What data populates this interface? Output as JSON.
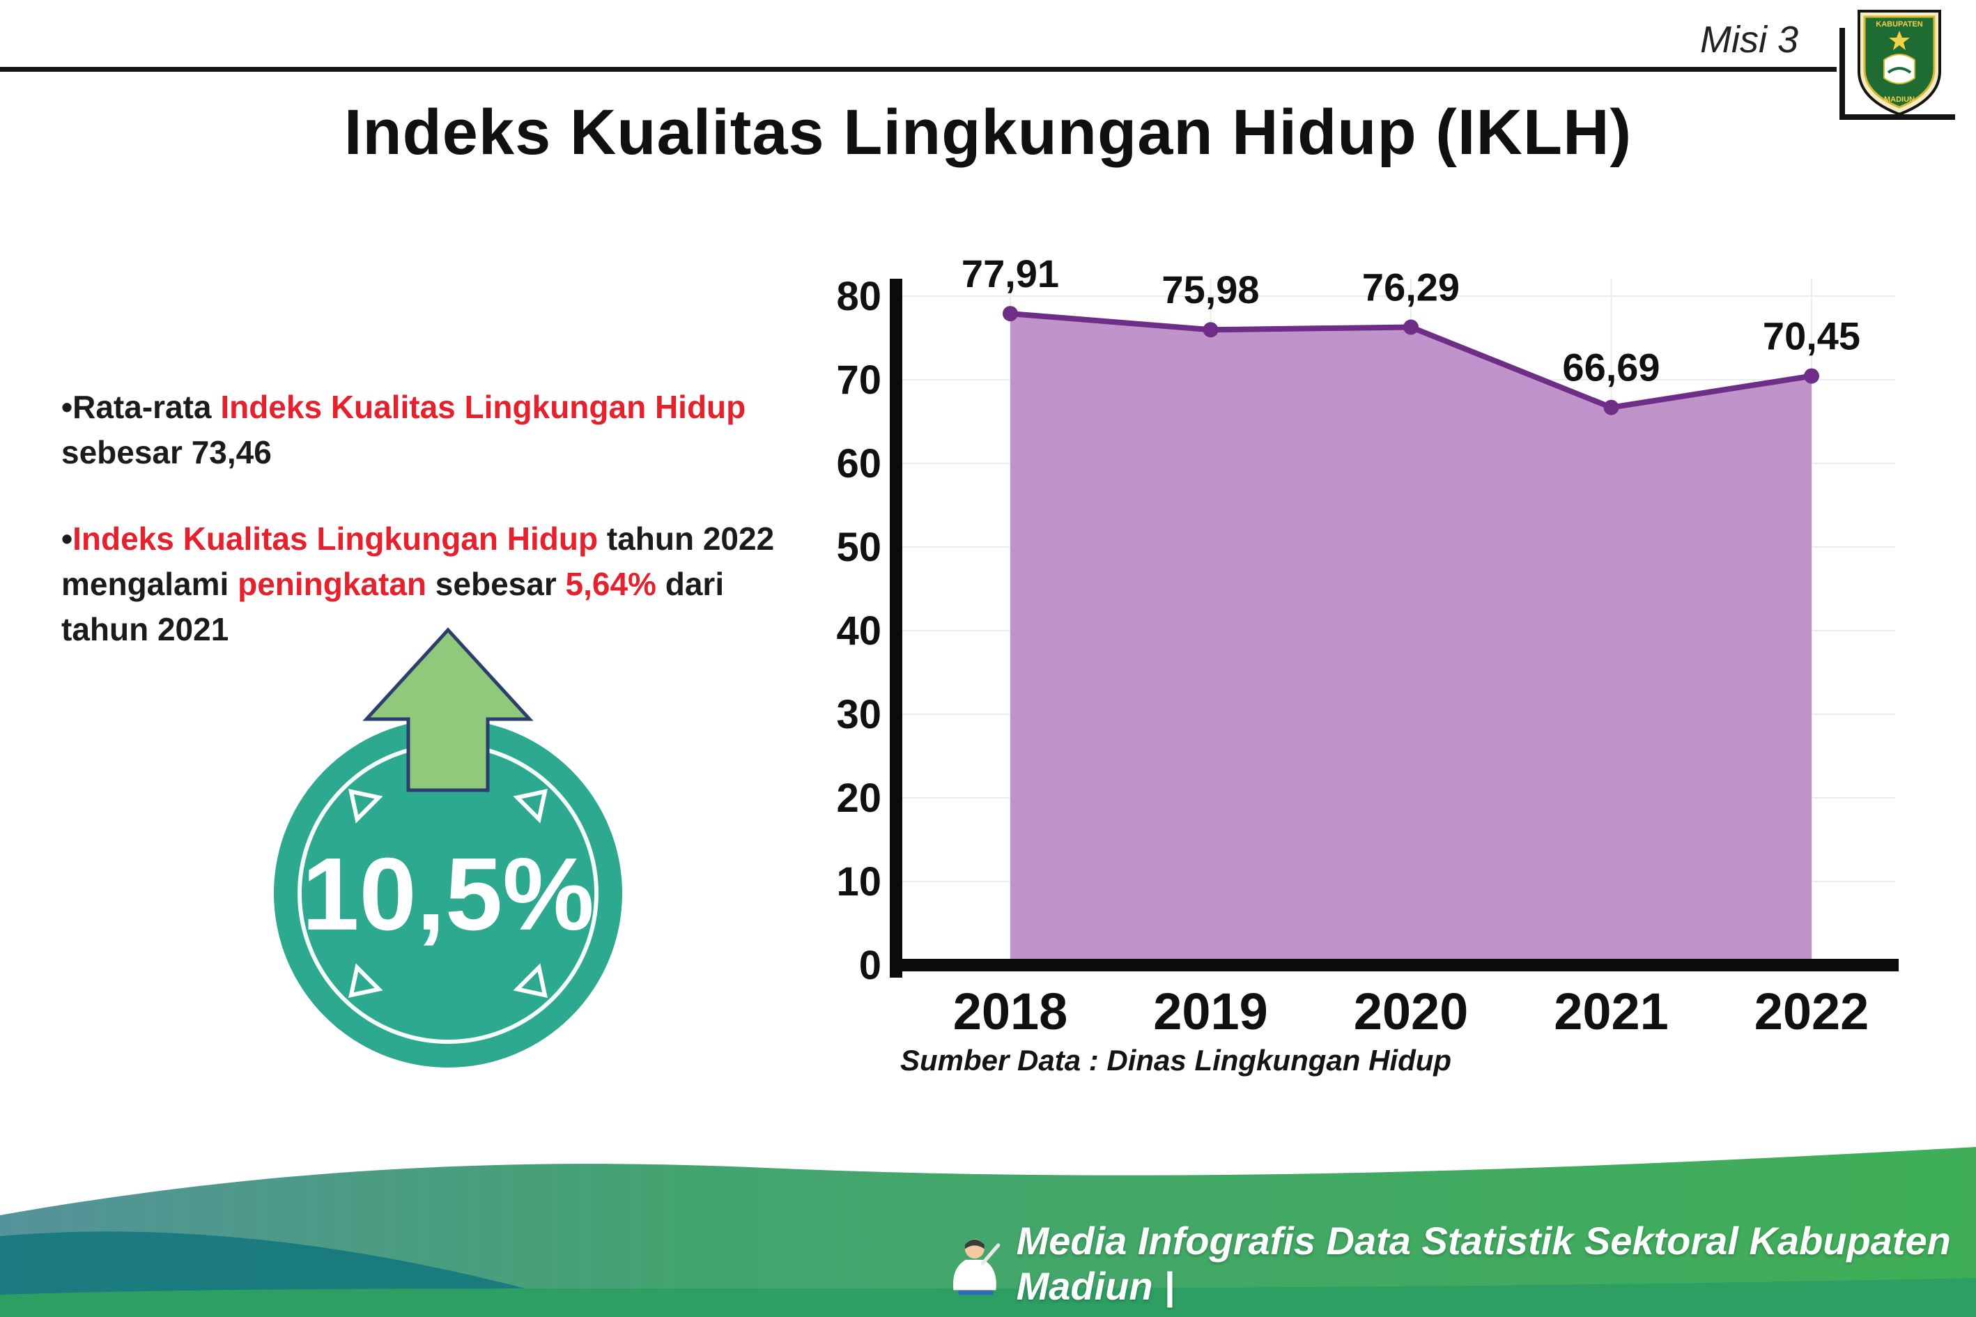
{
  "header": {
    "misi": "Misi 3",
    "title": "Indeks Kualitas Lingkungan Hidup (IKLH)"
  },
  "logo": {
    "top_text": "KABUPATEN",
    "bottom_text": "MADIUN"
  },
  "notes": {
    "marker": "•",
    "bullet1": {
      "pre": "Rata-rata ",
      "highlight": "Indeks Kualitas Lingkungan Hidup",
      "post": " sebesar 73,46"
    },
    "bullet2": {
      "h1": "Indeks Kualitas Lingkungan Hidup",
      "t1": " tahun 2022 mengalami ",
      "h2": "peningkatan",
      "t2": " sebesar ",
      "h3": "5,64%",
      "t3": " dari tahun 2021"
    }
  },
  "badge": {
    "value": "10,5%",
    "circle_color": "#2ca98e",
    "arrow_color": "#90c87c",
    "arrow_outline": "#2c3e6b"
  },
  "chart_data": {
    "type": "area",
    "title": "Indeks Kualitas Lingkungan Hidup (IKLH)",
    "categories": [
      "2018",
      "2019",
      "2020",
      "2021",
      "2022"
    ],
    "values": [
      77.91,
      75.98,
      76.29,
      66.69,
      70.45
    ],
    "value_labels": [
      "77,91",
      "75,98",
      "76,29",
      "66,69",
      "70,45"
    ],
    "xlabel": "",
    "ylabel": "",
    "ylim": [
      0,
      80
    ],
    "yticks": [
      0,
      10,
      20,
      30,
      40,
      50,
      60,
      70,
      80
    ],
    "grid": true,
    "legend": "none",
    "fill_color": "#c094ca",
    "line_color": "#6e2d86",
    "source": "Sumber Data : Dinas Lingkungan Hidup"
  },
  "footer": {
    "caption": "Media Infografis Data Statistik Sektoral Kabupaten Madiun |"
  },
  "colors": {
    "highlight_red": "#e6212e",
    "footer_teal": "#15787c",
    "footer_green": "#3fae57",
    "axis_black": "#0b0b0b"
  }
}
